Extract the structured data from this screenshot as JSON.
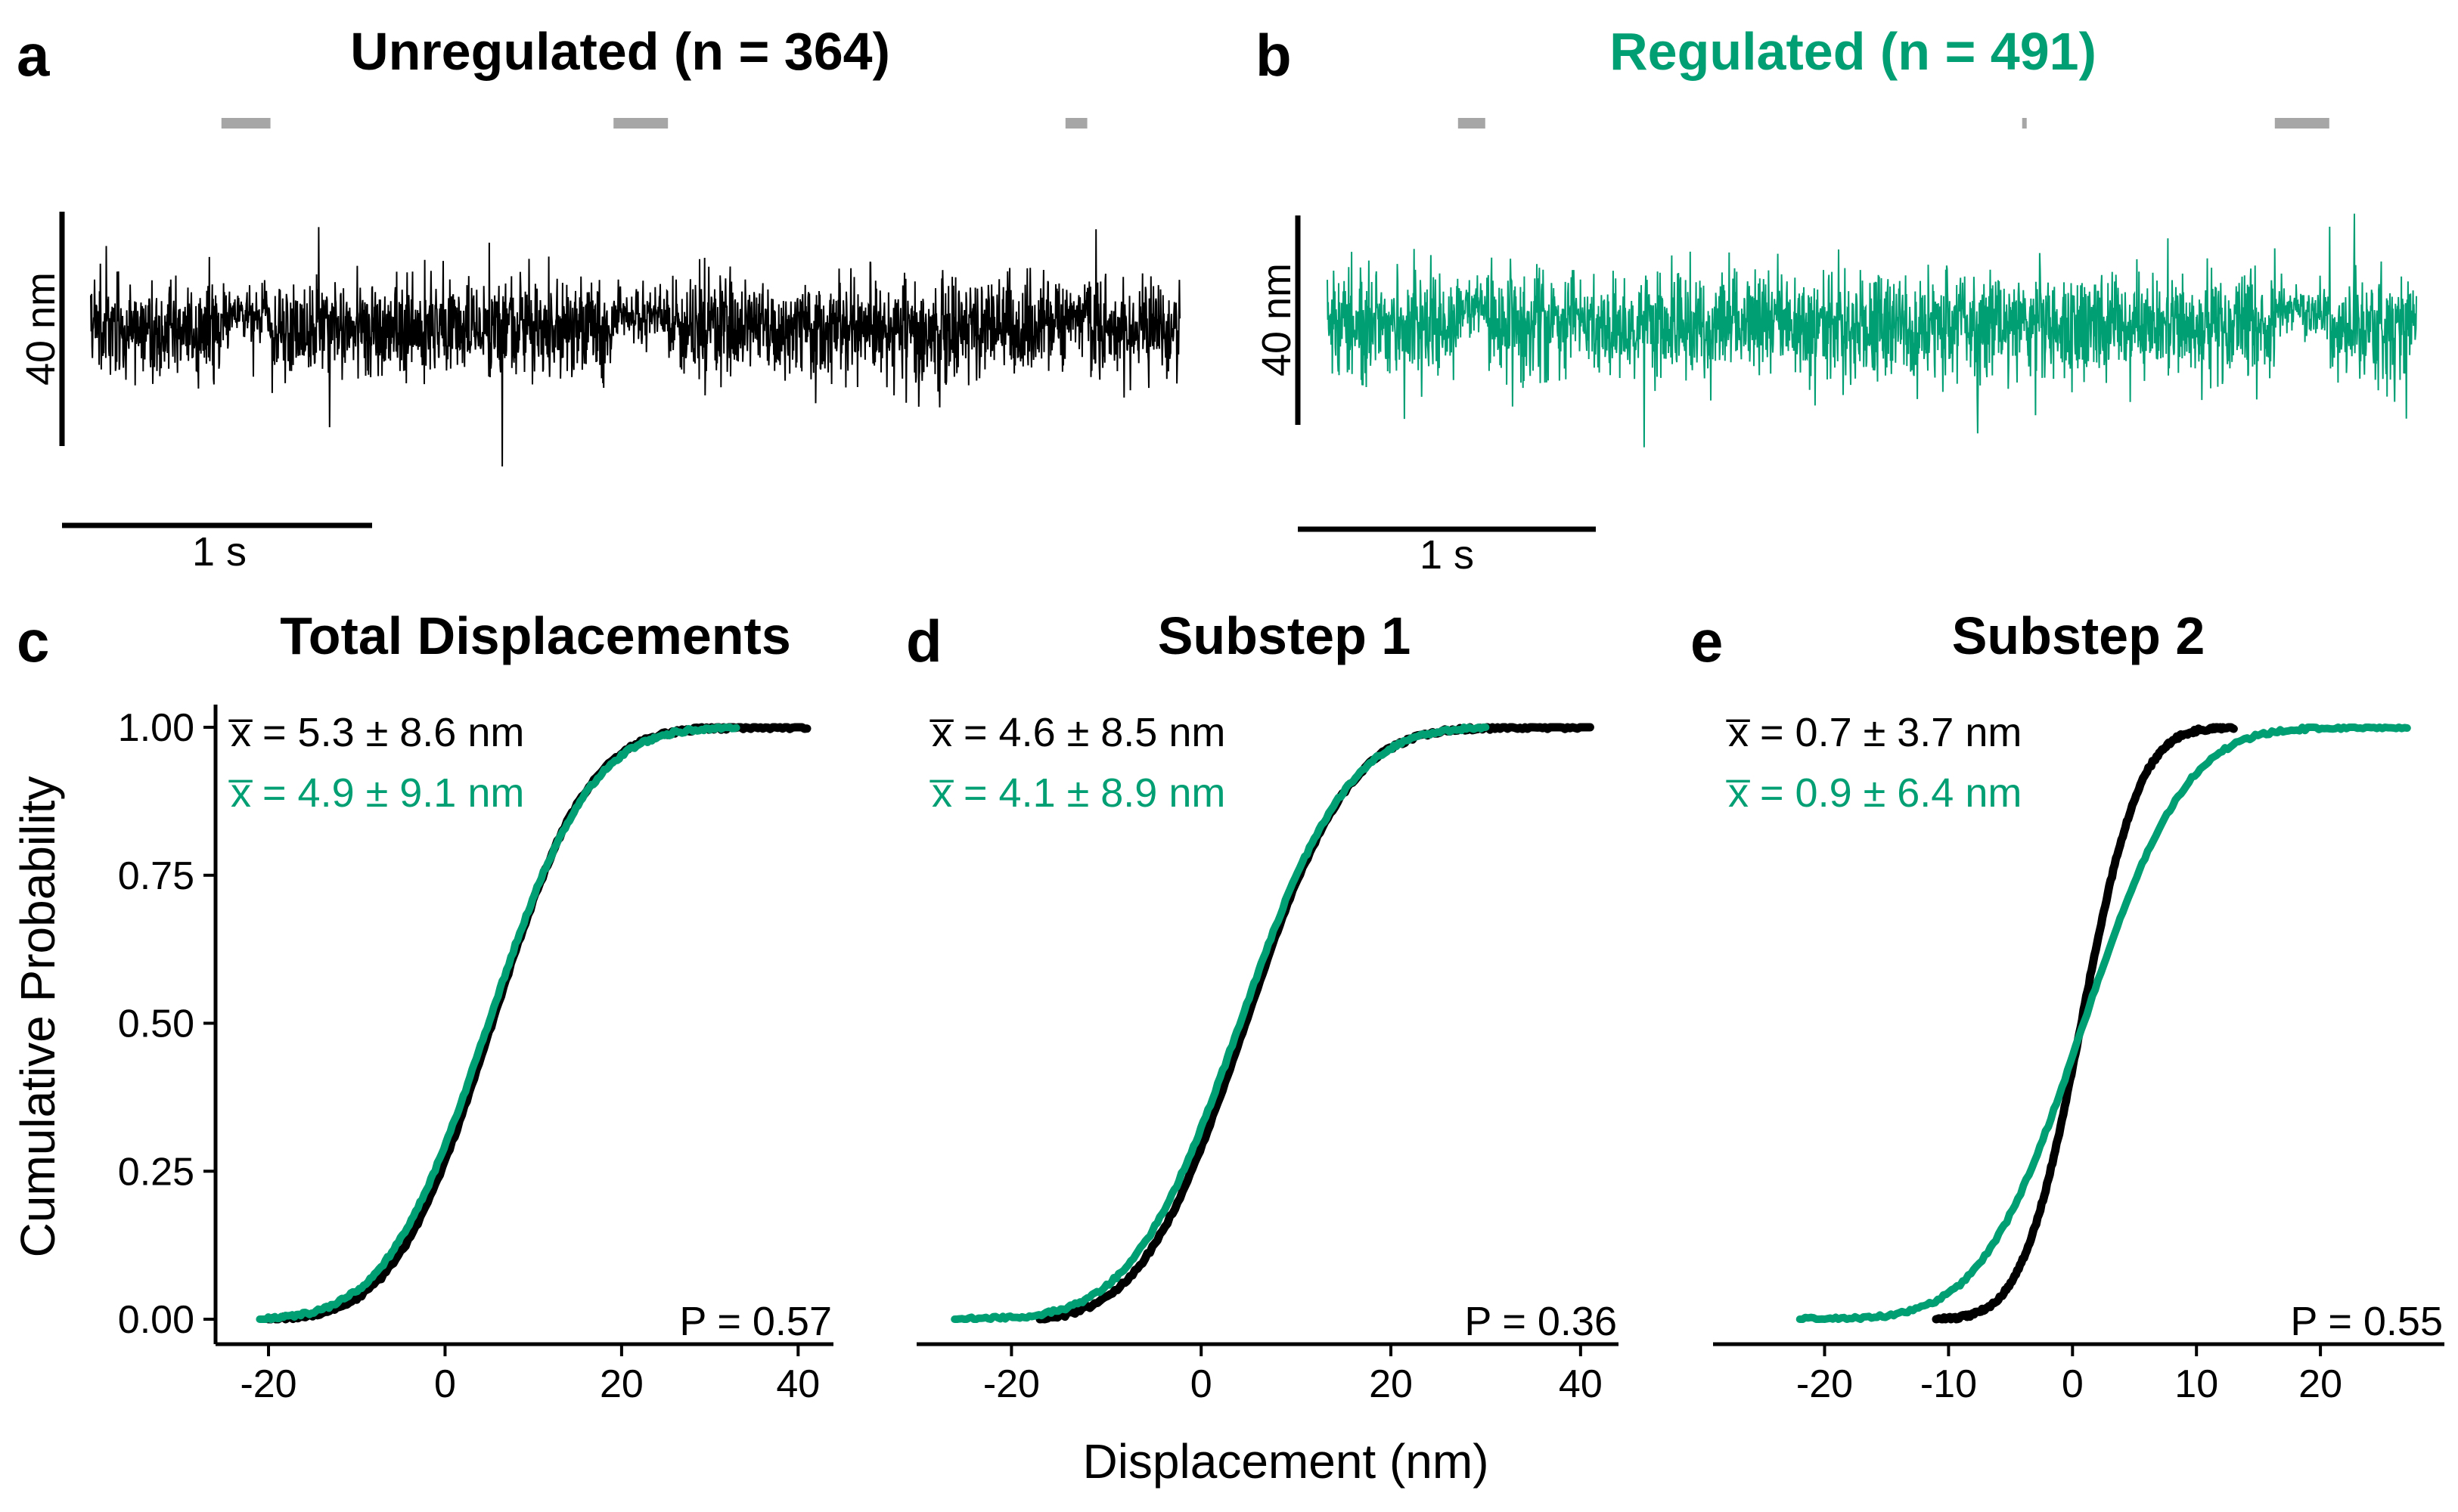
{
  "colors": {
    "unregulated": "#000000",
    "regulated": "#009E73",
    "marker": "#A6A6A6"
  },
  "traces": [
    {
      "letter": "a",
      "title": "Unregulated (n = 364)",
      "color": "#000000",
      "scale_y_label": "40 nm",
      "scale_x_label": "1 s",
      "event_markers_fraction": [
        [
          0.12,
          0.165
        ],
        [
          0.48,
          0.53
        ],
        [
          0.895,
          0.915
        ]
      ]
    },
    {
      "letter": "b",
      "title": "Regulated (n = 491)",
      "color": "#009E73",
      "scale_y_label": "40 nm",
      "scale_x_label": "1 s",
      "event_markers_fraction": [
        [
          0.12,
          0.145
        ],
        [
          0.638,
          0.642
        ],
        [
          0.87,
          0.92
        ]
      ]
    }
  ],
  "chart_data": [
    {
      "type": "line",
      "letter": "c",
      "title": "Total Displacements",
      "xlim": [
        -26,
        44
      ],
      "ylim": [
        0,
        1
      ],
      "xticks": [
        -20,
        0,
        20,
        40
      ],
      "yticks": [
        0.0,
        0.25,
        0.5,
        0.75,
        1.0
      ],
      "ytick_labels": [
        "0.00",
        "0.25",
        "0.50",
        "0.75",
        "1.00"
      ],
      "ylabel": "Cumulative Probability",
      "xlabel": "",
      "annotations": [
        {
          "text": "x̅ = 5.3 ± 8.6 nm",
          "color": "#000000"
        },
        {
          "text": "x̅ = 4.9 ± 9.1 nm",
          "color": "#009E73"
        }
      ],
      "p_value": "P = 0.57",
      "series": [
        {
          "color": "#000000",
          "mean": 5.3,
          "sd": 8.6,
          "min": -20,
          "max": 41
        },
        {
          "color": "#009E73",
          "mean": 4.9,
          "sd": 9.1,
          "min": -21,
          "max": 33
        }
      ]
    },
    {
      "type": "line",
      "letter": "d",
      "title": "Substep 1",
      "xlim": [
        -30,
        44
      ],
      "ylim": [
        0,
        1
      ],
      "xticks": [
        -20,
        0,
        20,
        40
      ],
      "yticks": [
        0.0,
        0.25,
        0.5,
        0.75,
        1.0
      ],
      "ytick_labels": [
        "",
        "",
        "",
        "",
        ""
      ],
      "ylabel": "",
      "xlabel": "Displacement (nm)",
      "annotations": [
        {
          "text": "x̅ = 4.6 ± 8.5 nm",
          "color": "#000000"
        },
        {
          "text": "x̅ = 4.1 ± 8.9 nm",
          "color": "#009E73"
        }
      ],
      "p_value": "P = 0.36",
      "series": [
        {
          "color": "#000000",
          "mean": 4.6,
          "sd": 8.5,
          "min": -17,
          "max": 41
        },
        {
          "color": "#009E73",
          "mean": 4.1,
          "sd": 8.9,
          "min": -26,
          "max": 30
        }
      ]
    },
    {
      "type": "line",
      "letter": "e",
      "title": "Substep 2",
      "xlim": [
        -29,
        30
      ],
      "ylim": [
        0,
        1
      ],
      "xticks": [
        -20,
        -10,
        0,
        10,
        20
      ],
      "yticks": [
        0.0,
        0.25,
        0.5,
        0.75,
        1.0
      ],
      "ytick_labels": [
        "",
        "",
        "",
        "",
        ""
      ],
      "ylabel": "",
      "xlabel": "",
      "annotations": [
        {
          "text": "x̅ = 0.7 ± 3.7 nm",
          "color": "#000000"
        },
        {
          "text": "x̅ = 0.9 ± 6.4 nm",
          "color": "#009E73"
        }
      ],
      "p_value": "P = 0.55",
      "series": [
        {
          "color": "#000000",
          "mean": 0.7,
          "sd": 3.7,
          "min": -11,
          "max": 13
        },
        {
          "color": "#009E73",
          "mean": 0.9,
          "sd": 6.4,
          "min": -22,
          "max": 27
        }
      ]
    }
  ]
}
